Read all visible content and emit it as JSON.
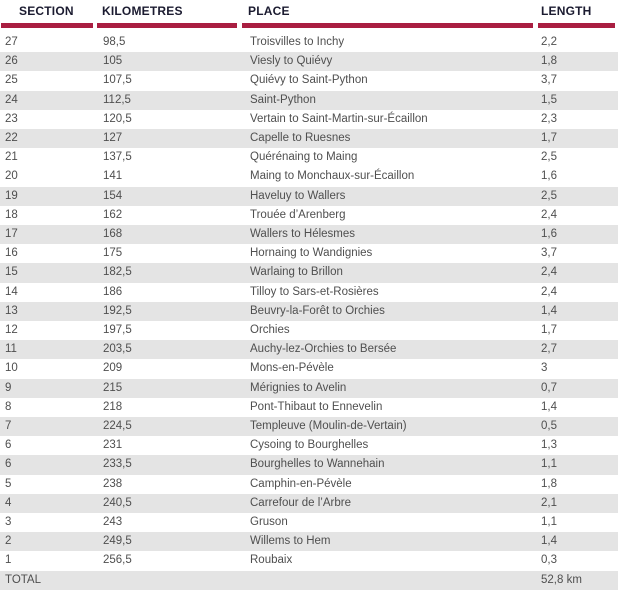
{
  "chart_data": {
    "type": "table",
    "columns": [
      "SECTION",
      "KILOMETRES",
      "PLACE",
      "LENGTH"
    ],
    "rows": [
      [
        "27",
        "98,5",
        "Troisvilles to Inchy",
        "2,2"
      ],
      [
        "26",
        "105",
        "Viesly to Quiévy",
        "1,8"
      ],
      [
        "25",
        "107,5",
        "Quiévy to Saint-Python",
        "3,7"
      ],
      [
        "24",
        "112,5",
        "Saint-Python",
        "1,5"
      ],
      [
        "23",
        "120,5",
        "Vertain to Saint-Martin-sur-Écaillon",
        "2,3"
      ],
      [
        "22",
        "127",
        "Capelle to Ruesnes",
        "1,7"
      ],
      [
        "21",
        "137,5",
        "Quérénaing to Maing",
        "2,5"
      ],
      [
        "20",
        "141",
        "Maing to Monchaux-sur-Écaillon",
        "1,6"
      ],
      [
        "19",
        "154",
        "Haveluy to Wallers",
        "2,5"
      ],
      [
        "18",
        "162",
        "Trouée d’Arenberg",
        "2,4"
      ],
      [
        "17",
        "168",
        "Wallers to Hélesmes",
        "1,6"
      ],
      [
        "16",
        "175",
        "Hornaing to Wandignies",
        "3,7"
      ],
      [
        "15",
        "182,5",
        "Warlaing to Brillon",
        "2,4"
      ],
      [
        "14",
        "186",
        "Tilloy to Sars-et-Rosières",
        "2,4"
      ],
      [
        "13",
        "192,5",
        "Beuvry-la-Forêt to Orchies",
        "1,4"
      ],
      [
        "12",
        "197,5",
        "Orchies",
        "1,7"
      ],
      [
        "11",
        "203,5",
        "Auchy-lez-Orchies to Bersée",
        "2,7"
      ],
      [
        "10",
        "209",
        "Mons-en-Pévèle",
        "3"
      ],
      [
        "9",
        "215",
        "Mérignies to Avelin",
        "0,7"
      ],
      [
        "8",
        "218",
        "Pont-Thibaut to Ennevelin",
        "1,4"
      ],
      [
        "7",
        "224,5",
        "Templeuve (Moulin-de-Vertain)",
        "0,5"
      ],
      [
        "6",
        "231",
        "Cysoing to Bourghelles",
        "1,3"
      ],
      [
        "6",
        "233,5",
        "Bourghelles to Wannehain",
        "1,1"
      ],
      [
        "5",
        "238",
        "Camphin-en-Pévèle",
        "1,8"
      ],
      [
        "4",
        "240,5",
        "Carrefour de l’Arbre",
        "2,1"
      ],
      [
        "3",
        "243",
        "Gruson",
        "1,1"
      ],
      [
        "2",
        "249,5",
        "Willems to Hem",
        "1,4"
      ],
      [
        "1",
        "256,5",
        "Roubaix",
        "0,3"
      ]
    ],
    "total_row": {
      "label": "TOTAL",
      "length": "52,8 km"
    }
  },
  "colors": {
    "accent": "#a91e41",
    "stripe": "#e4e4e4",
    "header_text": "#1b1b30",
    "body_text": "#4f4f4f"
  }
}
